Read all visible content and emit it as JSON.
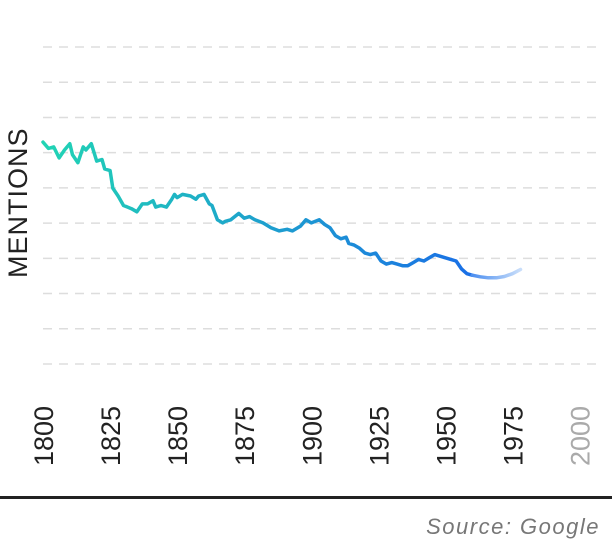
{
  "chart_data": {
    "type": "line",
    "title": "",
    "xlabel": "",
    "ylabel": "MENTIONS",
    "xlim": [
      1800,
      2008
    ],
    "ylim": [
      0,
      10
    ],
    "grid": true,
    "x_ticks": [
      1800,
      1825,
      1850,
      1875,
      1900,
      1925,
      1950,
      1975,
      2000
    ],
    "colors": {
      "start": "#21d4b4",
      "end": "#1a6fe6",
      "forecast_start": "#4d8ff0",
      "forecast_end": "#c9defa"
    },
    "series": [
      {
        "points": [
          [
            1800,
            7.0
          ],
          [
            1802,
            6.8
          ],
          [
            1804,
            6.85
          ],
          [
            1806,
            6.5
          ],
          [
            1808,
            6.75
          ],
          [
            1810,
            6.95
          ],
          [
            1811,
            6.6
          ],
          [
            1813,
            6.35
          ],
          [
            1815,
            6.85
          ],
          [
            1816,
            6.75
          ],
          [
            1818,
            6.95
          ],
          [
            1820,
            6.4
          ],
          [
            1822,
            6.45
          ],
          [
            1823,
            6.15
          ],
          [
            1825,
            6.1
          ],
          [
            1826,
            5.55
          ],
          [
            1828,
            5.3
          ],
          [
            1830,
            5.0
          ],
          [
            1833,
            4.9
          ],
          [
            1835,
            4.8
          ],
          [
            1837,
            5.05
          ],
          [
            1839,
            5.05
          ],
          [
            1841,
            5.15
          ],
          [
            1842,
            4.95
          ],
          [
            1844,
            5.0
          ],
          [
            1846,
            4.95
          ],
          [
            1848,
            5.2
          ],
          [
            1849,
            5.35
          ],
          [
            1850,
            5.25
          ],
          [
            1852,
            5.35
          ],
          [
            1855,
            5.3
          ],
          [
            1857,
            5.2
          ],
          [
            1858,
            5.3
          ],
          [
            1860,
            5.35
          ],
          [
            1862,
            5.05
          ],
          [
            1863,
            5.0
          ],
          [
            1865,
            4.55
          ],
          [
            1867,
            4.45
          ],
          [
            1868,
            4.5
          ],
          [
            1870,
            4.55
          ],
          [
            1873,
            4.75
          ],
          [
            1875,
            4.6
          ],
          [
            1877,
            4.65
          ],
          [
            1879,
            4.55
          ],
          [
            1882,
            4.45
          ],
          [
            1885,
            4.3
          ],
          [
            1888,
            4.2
          ],
          [
            1891,
            4.25
          ],
          [
            1893,
            4.2
          ],
          [
            1896,
            4.35
          ],
          [
            1898,
            4.55
          ],
          [
            1900,
            4.45
          ],
          [
            1903,
            4.55
          ],
          [
            1905,
            4.4
          ],
          [
            1907,
            4.3
          ],
          [
            1909,
            4.05
          ],
          [
            1911,
            3.95
          ],
          [
            1913,
            4.0
          ],
          [
            1914,
            3.8
          ],
          [
            1916,
            3.75
          ],
          [
            1918,
            3.65
          ],
          [
            1920,
            3.5
          ],
          [
            1922,
            3.45
          ],
          [
            1924,
            3.5
          ],
          [
            1926,
            3.25
          ],
          [
            1928,
            3.15
          ],
          [
            1930,
            3.2
          ],
          [
            1932,
            3.15
          ],
          [
            1934,
            3.1
          ],
          [
            1936,
            3.1
          ],
          [
            1938,
            3.2
          ],
          [
            1940,
            3.3
          ],
          [
            1942,
            3.25
          ],
          [
            1944,
            3.35
          ],
          [
            1946,
            3.45
          ],
          [
            1948,
            3.4
          ],
          [
            1950,
            3.35
          ],
          [
            1952,
            3.3
          ],
          [
            1954,
            3.25
          ],
          [
            1956,
            3.0
          ],
          [
            1958,
            2.85
          ],
          [
            1960,
            2.8
          ]
        ]
      },
      {
        "points": [
          [
            1960,
            2.8
          ],
          [
            1963,
            2.75
          ],
          [
            1966,
            2.72
          ],
          [
            1969,
            2.72
          ],
          [
            1972,
            2.76
          ],
          [
            1975,
            2.85
          ],
          [
            1978,
            2.98
          ]
        ]
      }
    ]
  },
  "footer": {
    "source": "Source: Google"
  }
}
